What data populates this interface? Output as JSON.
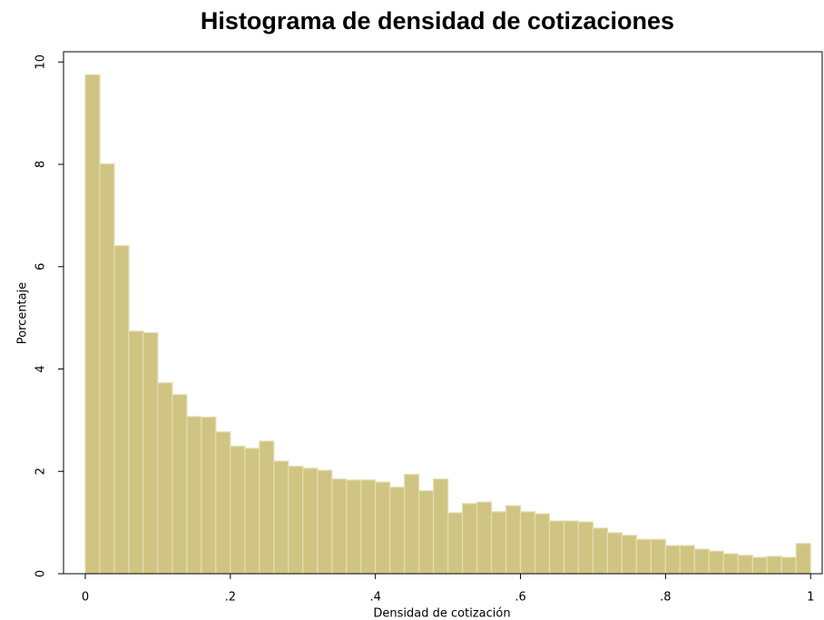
{
  "chart_data": {
    "type": "histogram",
    "title": "Histograma de densidad de cotizaciones",
    "x_label": "Densidad de cotización",
    "y_label": "Porcentaje",
    "bins": [
      0,
      0.02,
      0.04,
      0.06,
      0.08,
      0.1,
      0.12,
      0.14,
      0.16,
      0.18,
      0.2,
      0.22,
      0.24,
      0.26,
      0.28,
      0.3,
      0.32,
      0.34,
      0.36,
      0.38,
      0.4,
      0.42,
      0.44,
      0.46,
      0.48,
      0.5,
      0.52,
      0.54,
      0.56,
      0.58,
      0.6,
      0.62,
      0.64,
      0.66,
      0.68,
      0.7,
      0.72,
      0.74,
      0.76,
      0.78,
      0.8,
      0.82,
      0.84,
      0.86,
      0.88,
      0.9,
      0.92,
      0.94,
      0.96,
      0.98,
      1
    ],
    "values": [
      9.75,
      8.01,
      6.41,
      4.74,
      4.71,
      3.73,
      3.5,
      3.07,
      3.06,
      2.77,
      2.49,
      2.45,
      2.59,
      2.2,
      2.1,
      2.06,
      2.02,
      1.85,
      1.83,
      1.83,
      1.79,
      1.69,
      1.94,
      1.62,
      1.85,
      1.19,
      1.37,
      1.4,
      1.21,
      1.33,
      1.21,
      1.17,
      1.03,
      1.03,
      1.01,
      0.89,
      0.8,
      0.75,
      0.67,
      0.67,
      0.55,
      0.55,
      0.48,
      0.44,
      0.39,
      0.36,
      0.32,
      0.34,
      0.32,
      0.59
    ],
    "color": "#cfc482",
    "xlim": [
      -0.03,
      1.016
    ],
    "ylim": [
      0,
      10.2
    ],
    "xticks": [
      0,
      {
        "value": 0.2,
        "label": ".2"
      },
      {
        "value": 0.4,
        "label": ".4"
      },
      {
        "value": 0.6,
        "label": ".6"
      },
      {
        "value": 0.8,
        "label": ".8"
      },
      1
    ],
    "yticks": [
      0,
      2,
      4,
      6,
      8,
      10
    ]
  }
}
